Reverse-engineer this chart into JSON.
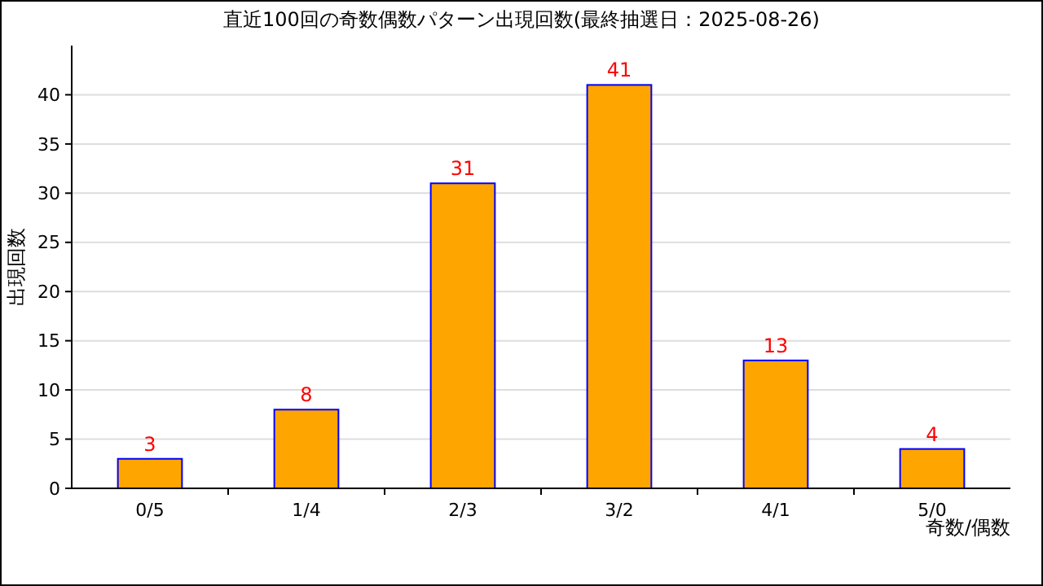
{
  "chart_data": {
    "type": "bar",
    "title": "直近100回の奇数偶数パターン出現回数(最終抽選日：2025-08-26)",
    "xlabel": "奇数/偶数",
    "ylabel": "出現回数",
    "categories": [
      "0/5",
      "1/4",
      "2/3",
      "3/2",
      "4/1",
      "5/0"
    ],
    "series": [
      {
        "color": "#ffa500",
        "values": [
          3,
          8,
          31,
          41,
          13,
          4
        ]
      }
    ],
    "ylim": [
      0,
      45
    ],
    "yticks": [
      0,
      5,
      10,
      15,
      20,
      25,
      30,
      35,
      40
    ],
    "grid": "y",
    "data_labels": true
  }
}
